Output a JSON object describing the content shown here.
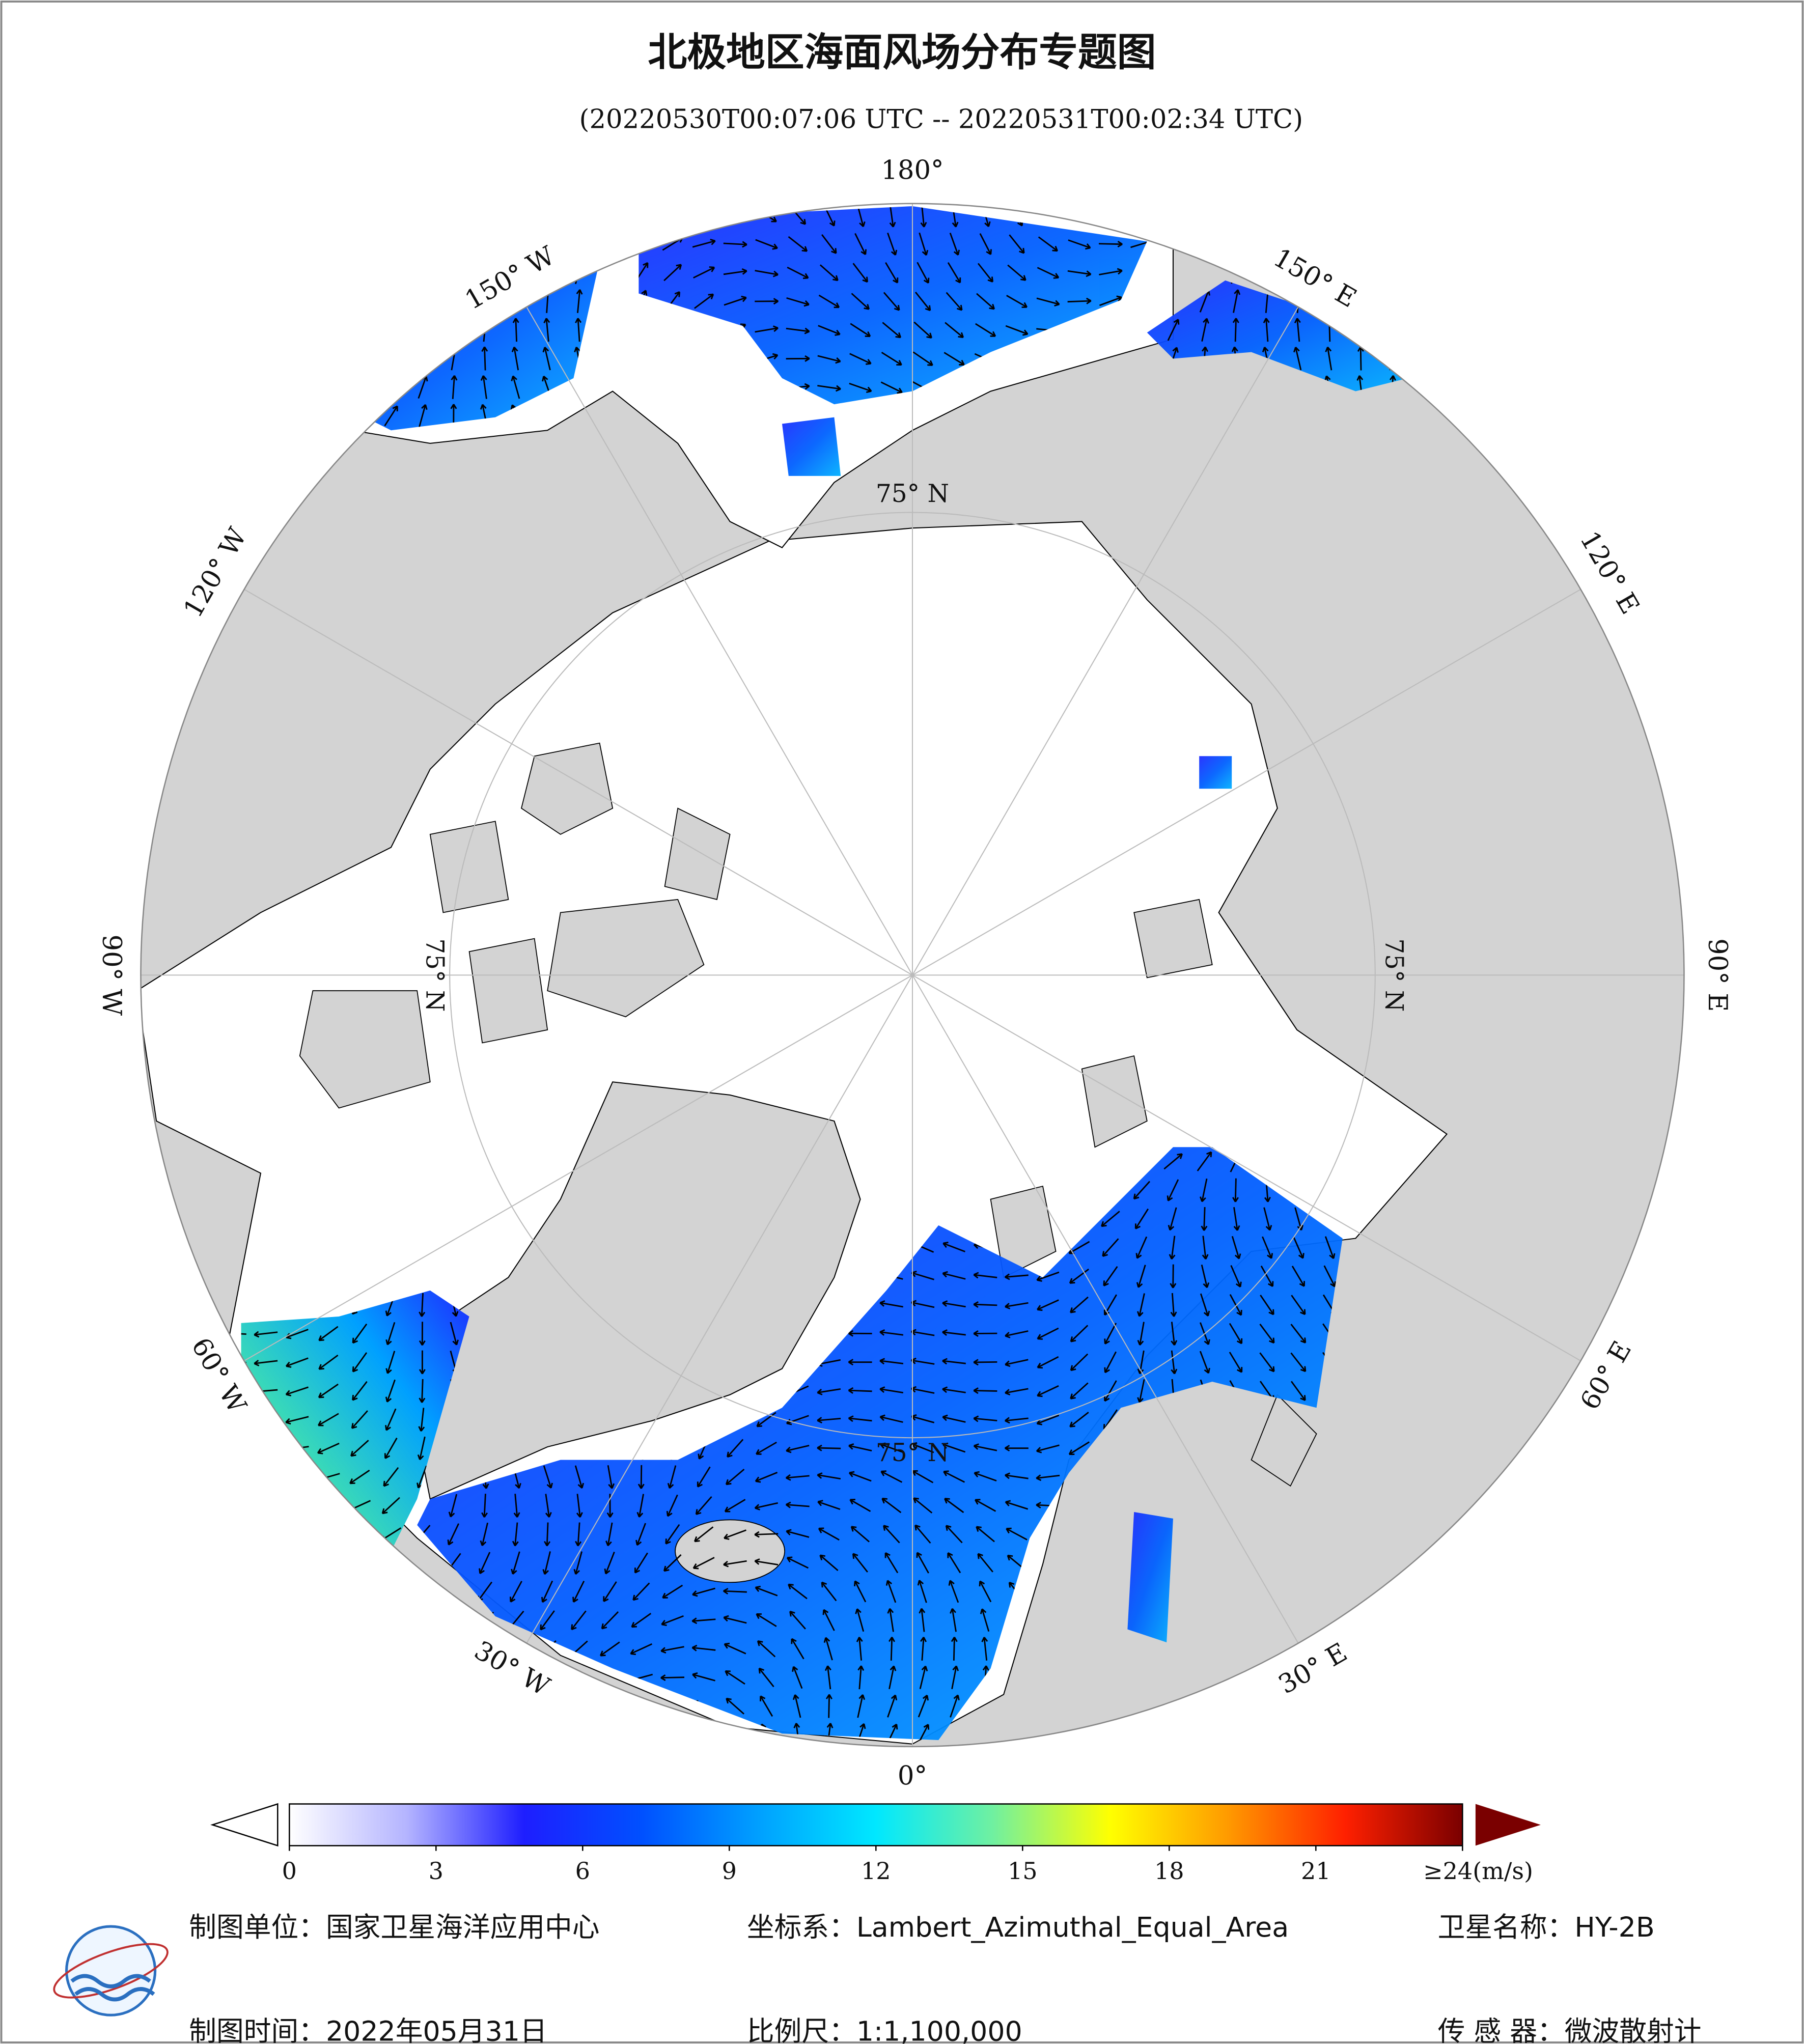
{
  "title": "北极地区海面风场分布专题图",
  "subtitle": "(20220530T00:07:06 UTC -- 20220531T00:02:34 UTC)",
  "map": {
    "longitude_labels": [
      "0°",
      "30° E",
      "60° E",
      "90° E",
      "120° E",
      "150° E",
      "180°",
      "150° W",
      "120° W",
      "90° W",
      "60° W",
      "30° W"
    ],
    "latitude_labels": [
      "75° N",
      "75° N",
      "75° N",
      "75° N"
    ]
  },
  "colorbar": {
    "range": [
      0,
      24
    ],
    "ticks": [
      0,
      3,
      6,
      9,
      12,
      15,
      18,
      21,
      {
        "value": 24,
        "label": "≥24(m/s)"
      }
    ],
    "colors": [
      "#ffffff",
      "#b4b4ff",
      "#1e1eff",
      "#0050ff",
      "#00a0ff",
      "#00e8ff",
      "#70f0a0",
      "#ffff00",
      "#ff9a00",
      "#ff2000",
      "#7a0000"
    ]
  },
  "footer": {
    "unit": "制图单位：国家卫星海洋应用中心",
    "date": "制图时间：2022年05月31日",
    "crs": "坐标系：Lambert_Azimuthal_Equal_Area",
    "scale": "比例尺：1:1,100,000",
    "satellite": "卫星名称：HY-2B",
    "sensor": "传 感 器：微波散射计"
  }
}
